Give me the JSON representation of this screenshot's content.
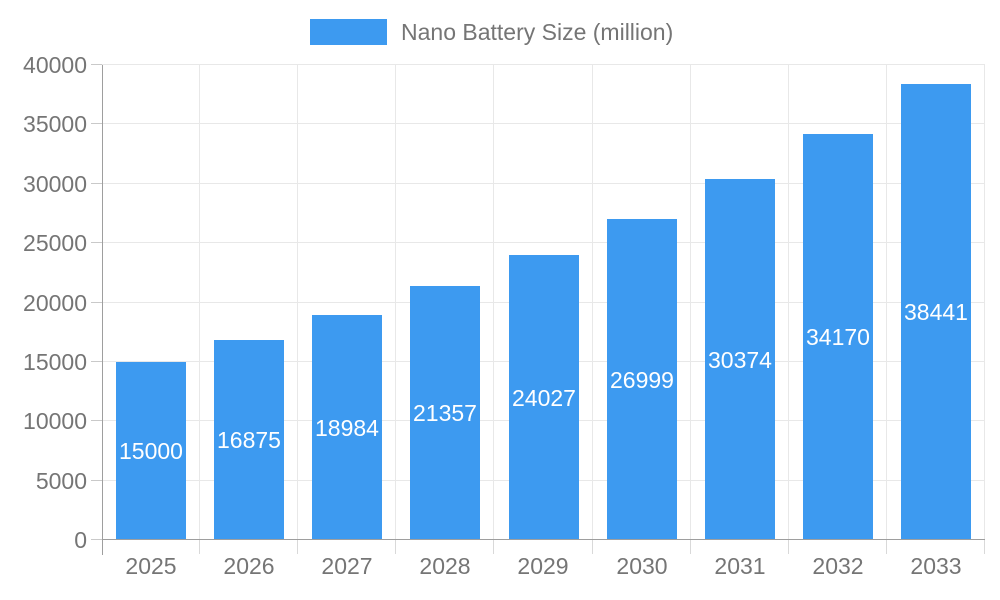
{
  "legend": {
    "label": "Nano Battery Size (million)"
  },
  "chart_data": {
    "type": "bar",
    "title": "Nano Battery Size (million)",
    "series_name": "Nano Battery Size (million)",
    "categories": [
      "2025",
      "2026",
      "2027",
      "2028",
      "2029",
      "2030",
      "2031",
      "2032",
      "2033"
    ],
    "values": [
      15000,
      16875,
      18984,
      21357,
      24027,
      26999,
      30374,
      34170,
      38441
    ],
    "xlabel": "",
    "ylabel": "",
    "ylim": [
      0,
      40000
    ],
    "yticks": [
      0,
      5000,
      10000,
      15000,
      20000,
      25000,
      30000,
      35000,
      40000
    ],
    "grid": true,
    "legend_position": "top",
    "bar_labels_inside": true,
    "bar_color": "#3D9AF0",
    "bar_label_color": "#FFFFFF",
    "axis_text_color": "#757575",
    "grid_color": "#E8E8E8",
    "axis_line_color": "#9E9E9E",
    "minor_tick_color": "#D9D9D9"
  }
}
